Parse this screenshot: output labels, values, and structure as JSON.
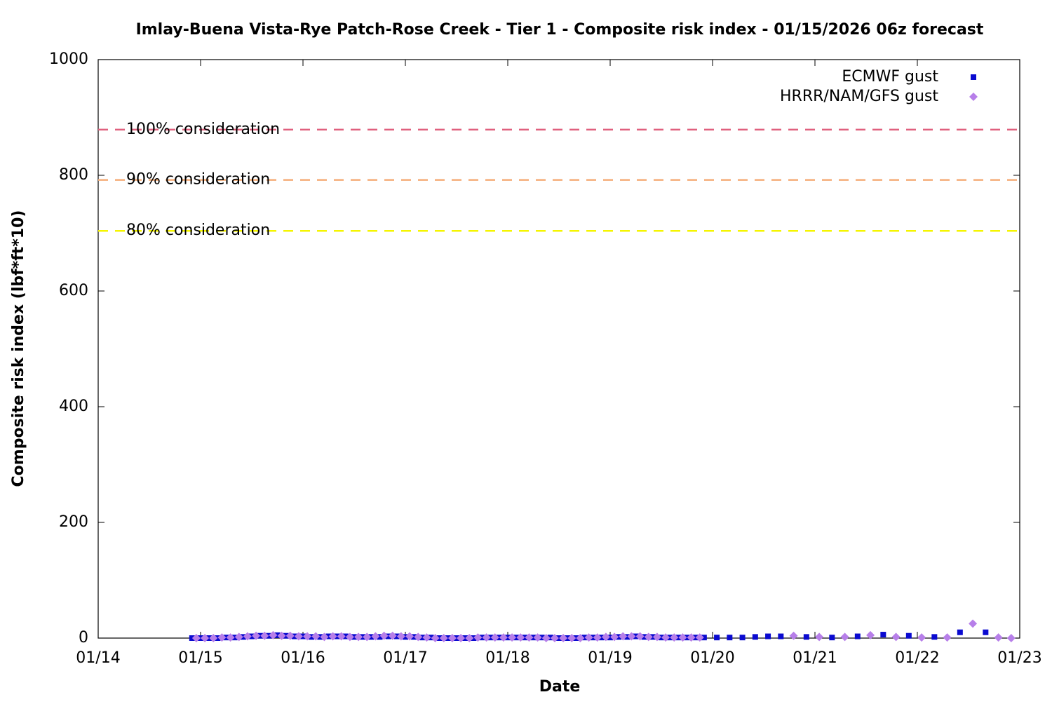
{
  "chart_data": {
    "type": "scatter",
    "title": "Imlay-Buena Vista-Rye Patch-Rose Creek - Tier 1 - Composite risk index - 01/15/2026 06z forecast",
    "x_label": "Date",
    "y_label": "Composite risk index (lbf*ft*10)",
    "xlim": [
      0,
      216
    ],
    "xticks": [
      {
        "value": 0,
        "label": "01/14"
      },
      {
        "value": 24,
        "label": "01/15"
      },
      {
        "value": 48,
        "label": "01/16"
      },
      {
        "value": 72,
        "label": "01/17"
      },
      {
        "value": 96,
        "label": "01/18"
      },
      {
        "value": 120,
        "label": "01/19"
      },
      {
        "value": 144,
        "label": "01/20"
      },
      {
        "value": 168,
        "label": "01/21"
      },
      {
        "value": 192,
        "label": "01/22"
      },
      {
        "value": 216,
        "label": "01/23"
      }
    ],
    "ylim": [
      0,
      1000
    ],
    "yticks": [
      0,
      200,
      400,
      600,
      800,
      1000
    ],
    "grid": false,
    "legend_position": "top-right",
    "reference_lines": [
      {
        "label": "100% consideration",
        "value": 879,
        "color": "#e0607e"
      },
      {
        "label": "90% consideration",
        "value": 792,
        "color": "#f5ae7a"
      },
      {
        "label": "80% consideration",
        "value": 704,
        "color": "#f5f500"
      }
    ],
    "series": [
      {
        "name": "ECMWF gust",
        "color": "#0a0ad0",
        "marker": "square",
        "x": [
          22,
          24,
          26,
          28,
          30,
          32,
          34,
          36,
          38,
          40,
          42,
          44,
          46,
          48,
          50,
          52,
          54,
          56,
          58,
          60,
          62,
          64,
          66,
          68,
          70,
          72,
          74,
          76,
          78,
          80,
          82,
          84,
          86,
          88,
          90,
          92,
          94,
          96,
          98,
          100,
          102,
          104,
          106,
          108,
          110,
          112,
          114,
          116,
          118,
          120,
          122,
          124,
          126,
          128,
          130,
          132,
          134,
          136,
          138,
          140,
          142,
          145,
          148,
          151,
          154,
          157,
          160,
          166,
          172,
          178,
          184,
          190,
          196,
          202,
          208
        ],
        "values": [
          0,
          0,
          0,
          0,
          1,
          1,
          2,
          3,
          4,
          4,
          5,
          4,
          3,
          3,
          2,
          2,
          3,
          3,
          3,
          2,
          2,
          2,
          2,
          3,
          3,
          2,
          2,
          1,
          1,
          0,
          0,
          0,
          0,
          0,
          1,
          1,
          1,
          1,
          1,
          1,
          1,
          1,
          1,
          0,
          0,
          0,
          1,
          1,
          1,
          1,
          2,
          2,
          3,
          2,
          2,
          1,
          1,
          1,
          1,
          1,
          1,
          1,
          1,
          1,
          2,
          3,
          3,
          2,
          1,
          3,
          6,
          4,
          2,
          10,
          10
        ]
      },
      {
        "name": "HRRR/NAM/GFS gust",
        "color": "#b77fe9",
        "marker": "diamond",
        "x": [
          23,
          25,
          27,
          29,
          31,
          33,
          35,
          37,
          39,
          41,
          43,
          45,
          47,
          49,
          51,
          53,
          55,
          57,
          59,
          61,
          63,
          65,
          67,
          69,
          71,
          73,
          75,
          77,
          79,
          81,
          83,
          85,
          87,
          89,
          91,
          93,
          95,
          97,
          99,
          101,
          103,
          105,
          107,
          109,
          111,
          113,
          115,
          117,
          119,
          121,
          123,
          125,
          127,
          129,
          131,
          133,
          135,
          137,
          139,
          141,
          163,
          169,
          175,
          181,
          187,
          193,
          199,
          205,
          211,
          214
        ],
        "values": [
          0,
          0,
          0,
          1,
          1,
          2,
          3,
          4,
          4,
          5,
          4,
          4,
          3,
          3,
          3,
          2,
          3,
          3,
          2,
          2,
          2,
          3,
          4,
          4,
          3,
          3,
          2,
          1,
          0,
          0,
          0,
          0,
          0,
          1,
          1,
          1,
          1,
          1,
          1,
          1,
          1,
          0,
          0,
          0,
          0,
          0,
          1,
          1,
          2,
          2,
          3,
          3,
          3,
          2,
          2,
          1,
          1,
          1,
          1,
          1,
          4,
          2,
          2,
          5,
          2,
          1,
          1,
          25,
          1,
          0
        ]
      }
    ]
  }
}
